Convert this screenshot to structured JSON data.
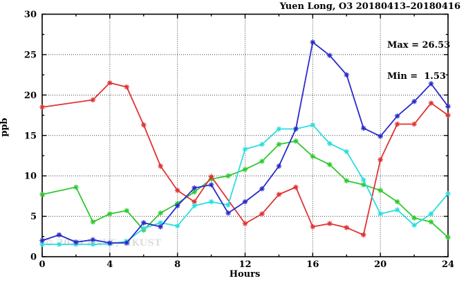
{
  "title": "Yuen Long, O3 20180413–20180416",
  "legend": {
    "max_label": "Max = 26.53",
    "min_label": "Min =  1.53"
  },
  "axes": {
    "x_label": "Hours",
    "y_label": "ppb",
    "x_ticks": [
      0,
      4,
      8,
      12,
      16,
      20,
      24
    ],
    "x_minor_ticks": [
      2,
      6,
      10,
      14,
      18,
      22
    ],
    "y_ticks": [
      0,
      5,
      10,
      15,
      20,
      25,
      30
    ],
    "y_minor_ticks": [
      2.5,
      7.5,
      12.5,
      17.5,
      22.5,
      27.5
    ],
    "x_grid": [
      4,
      8,
      12,
      16,
      20
    ],
    "y_grid": [
      5,
      10,
      15,
      20,
      25
    ]
  },
  "watermark": "© 2020 ENVF, HKUST",
  "chart_data": {
    "type": "line",
    "title": "Yuen Long, O3 20180413–20180416",
    "xlabel": "Hours",
    "ylabel": "ppb",
    "xlim": [
      0,
      24
    ],
    "ylim": [
      0,
      30
    ],
    "grid": true,
    "legend_position": "top-right-inside",
    "annotations": [
      "Max = 26.53",
      "Min =  1.53"
    ],
    "x": [
      0,
      1,
      2,
      3,
      4,
      5,
      6,
      7,
      8,
      9,
      10,
      11,
      12,
      13,
      14,
      15,
      16,
      17,
      18,
      19,
      20,
      21,
      22,
      23,
      24
    ],
    "series": [
      {
        "name": "green",
        "color": "#2ec82e",
        "values": [
          7.7,
          null,
          8.6,
          4.3,
          5.3,
          5.7,
          3.3,
          5.4,
          6.6,
          8.0,
          9.6,
          10.0,
          10.8,
          11.8,
          13.9,
          14.3,
          12.4,
          11.4,
          9.4,
          8.9,
          8.2,
          6.8,
          4.8,
          4.3,
          2.4
        ]
      },
      {
        "name": "red",
        "color": "#e03232",
        "values": [
          18.5,
          null,
          null,
          19.4,
          21.5,
          21.0,
          16.3,
          11.2,
          8.2,
          6.8,
          9.9,
          null,
          4.1,
          5.3,
          7.7,
          8.6,
          3.7,
          4.1,
          3.6,
          2.7,
          12.0,
          16.4,
          16.4,
          19.0,
          17.5
        ]
      },
      {
        "name": "cyan",
        "color": "#2bdddd",
        "values": [
          1.53,
          1.53,
          1.53,
          1.53,
          1.6,
          1.9,
          3.5,
          4.2,
          3.8,
          6.3,
          6.8,
          6.4,
          13.3,
          13.9,
          15.8,
          15.8,
          16.3,
          14.0,
          13.0,
          9.5,
          5.3,
          5.8,
          3.9,
          5.3,
          7.8
        ]
      },
      {
        "name": "blue",
        "color": "#2929cc",
        "values": [
          2.0,
          2.7,
          1.8,
          2.1,
          1.7,
          1.7,
          4.2,
          3.7,
          6.3,
          8.5,
          8.9,
          5.4,
          6.8,
          8.4,
          11.2,
          15.8,
          26.53,
          24.9,
          22.5,
          15.9,
          14.9,
          17.4,
          19.2,
          21.4,
          18.6
        ]
      }
    ]
  }
}
